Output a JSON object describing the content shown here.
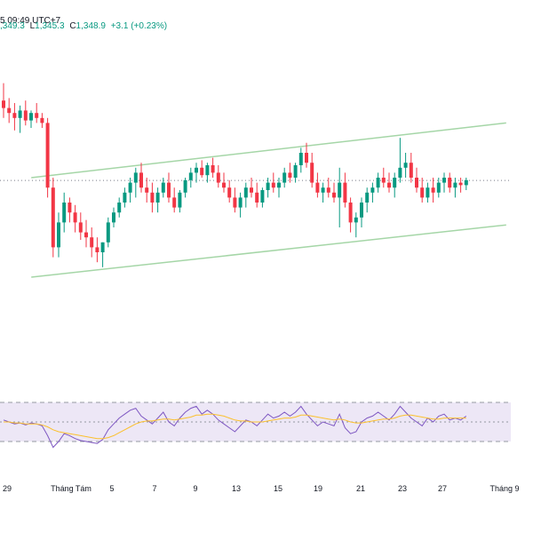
{
  "header": {
    "time": "5 09:49 UTC+7",
    "ohlc_fragment": ",349.3",
    "low_label": "L",
    "low_value": "1,345.3",
    "close_label": "C",
    "close_value": "1,348.9",
    "change": "+3.1 (+0.23%)"
  },
  "colors": {
    "up": "#089981",
    "down": "#f23645",
    "channel": "#a5d6a7",
    "rsi_line": "#7e57c2",
    "rsi_ma": "#fbc02d",
    "rsi_band": "#ede7f6",
    "rsi_oversold_fill": "#f8bbd0",
    "price_line": "#787b86"
  },
  "chart_data": [
    {
      "type": "candlestick",
      "ylim": [
        1300,
        1400
      ],
      "x_tick_labels": [
        "29",
        "Tháng Tám",
        "5",
        "7",
        "9",
        "13",
        "15",
        "19",
        "21",
        "23",
        "27",
        "Tháng 9"
      ],
      "last_price": 1348.9,
      "candles": [
        [
          1381,
          1388,
          1374,
          1378
        ],
        [
          1378,
          1382,
          1372,
          1376
        ],
        [
          1376,
          1380,
          1369,
          1374
        ],
        [
          1374,
          1379,
          1368,
          1377
        ],
        [
          1377,
          1381,
          1371,
          1373
        ],
        [
          1373,
          1377,
          1370,
          1376
        ],
        [
          1376,
          1380,
          1372,
          1374
        ],
        [
          1374,
          1376,
          1370,
          1372
        ],
        [
          1372,
          1374,
          1342,
          1346
        ],
        [
          1346,
          1350,
          1318,
          1322
        ],
        [
          1322,
          1336,
          1318,
          1332
        ],
        [
          1332,
          1344,
          1328,
          1340
        ],
        [
          1340,
          1342,
          1332,
          1336
        ],
        [
          1336,
          1339,
          1328,
          1332
        ],
        [
          1332,
          1336,
          1325,
          1328
        ],
        [
          1328,
          1333,
          1322,
          1326
        ],
        [
          1326,
          1330,
          1318,
          1322
        ],
        [
          1322,
          1326,
          1316,
          1320
        ],
        [
          1320,
          1324,
          1314,
          1324
        ],
        [
          1324,
          1334,
          1322,
          1332
        ],
        [
          1332,
          1338,
          1330,
          1336
        ],
        [
          1336,
          1342,
          1334,
          1340
        ],
        [
          1340,
          1346,
          1338,
          1344
        ],
        [
          1344,
          1350,
          1340,
          1348
        ],
        [
          1348,
          1354,
          1342,
          1352
        ],
        [
          1352,
          1356,
          1344,
          1346
        ],
        [
          1346,
          1350,
          1340,
          1344
        ],
        [
          1344,
          1348,
          1336,
          1340
        ],
        [
          1340,
          1346,
          1336,
          1344
        ],
        [
          1344,
          1350,
          1342,
          1348
        ],
        [
          1348,
          1352,
          1340,
          1342
        ],
        [
          1342,
          1346,
          1336,
          1338
        ],
        [
          1338,
          1345,
          1336,
          1344
        ],
        [
          1344,
          1350,
          1342,
          1349
        ],
        [
          1349,
          1354,
          1346,
          1352
        ],
        [
          1352,
          1356,
          1348,
          1354
        ],
        [
          1354,
          1357,
          1350,
          1351
        ],
        [
          1351,
          1356,
          1348,
          1355
        ],
        [
          1355,
          1358,
          1350,
          1352
        ],
        [
          1352,
          1355,
          1346,
          1348
        ],
        [
          1348,
          1352,
          1344,
          1346
        ],
        [
          1346,
          1349,
          1340,
          1342
        ],
        [
          1342,
          1346,
          1336,
          1338
        ],
        [
          1338,
          1344,
          1334,
          1342
        ],
        [
          1342,
          1348,
          1338,
          1346
        ],
        [
          1346,
          1350,
          1342,
          1344
        ],
        [
          1344,
          1348,
          1338,
          1340
        ],
        [
          1340,
          1346,
          1338,
          1345
        ],
        [
          1345,
          1350,
          1342,
          1348
        ],
        [
          1348,
          1352,
          1344,
          1346
        ],
        [
          1346,
          1350,
          1342,
          1348
        ],
        [
          1348,
          1354,
          1346,
          1352
        ],
        [
          1352,
          1356,
          1348,
          1350
        ],
        [
          1350,
          1356,
          1348,
          1355
        ],
        [
          1355,
          1362,
          1352,
          1360
        ],
        [
          1360,
          1364,
          1354,
          1356
        ],
        [
          1356,
          1360,
          1346,
          1348
        ],
        [
          1348,
          1352,
          1342,
          1344
        ],
        [
          1344,
          1348,
          1340,
          1346
        ],
        [
          1346,
          1350,
          1342,
          1344
        ],
        [
          1344,
          1348,
          1340,
          1342
        ],
        [
          1342,
          1354,
          1330,
          1348
        ],
        [
          1348,
          1352,
          1338,
          1340
        ],
        [
          1340,
          1342,
          1328,
          1332
        ],
        [
          1332,
          1336,
          1326,
          1334
        ],
        [
          1334,
          1342,
          1330,
          1340
        ],
        [
          1340,
          1346,
          1336,
          1344
        ],
        [
          1344,
          1348,
          1340,
          1346
        ],
        [
          1346,
          1352,
          1344,
          1350
        ],
        [
          1350,
          1354,
          1346,
          1348
        ],
        [
          1348,
          1352,
          1344,
          1346
        ],
        [
          1346,
          1352,
          1342,
          1350
        ],
        [
          1350,
          1366,
          1348,
          1354
        ],
        [
          1354,
          1360,
          1350,
          1356
        ],
        [
          1356,
          1360,
          1348,
          1350
        ],
        [
          1350,
          1354,
          1344,
          1346
        ],
        [
          1346,
          1350,
          1340,
          1342
        ],
        [
          1342,
          1348,
          1340,
          1346
        ],
        [
          1346,
          1350,
          1340,
          1344
        ],
        [
          1344,
          1350,
          1342,
          1348
        ],
        [
          1348,
          1352,
          1344,
          1350
        ],
        [
          1350,
          1352,
          1344,
          1346
        ],
        [
          1346,
          1350,
          1342,
          1348
        ],
        [
          1348,
          1350,
          1344,
          1347
        ],
        [
          1347,
          1350,
          1345,
          1349
        ]
      ],
      "channel_upper": [
        [
          1,
          1350
        ],
        [
          84,
          1372
        ]
      ],
      "channel_lower": [
        [
          1,
          1310
        ],
        [
          84,
          1331
        ]
      ]
    },
    {
      "type": "line",
      "title": "",
      "ylim": [
        0,
        100
      ],
      "bands": [
        30,
        50,
        70
      ],
      "series": [
        {
          "color": "#7e57c2",
          "values": [
            52,
            50,
            48,
            49,
            47,
            49,
            48,
            46,
            36,
            24,
            30,
            38,
            36,
            33,
            31,
            30,
            29,
            28,
            32,
            42,
            48,
            54,
            58,
            62,
            64,
            56,
            52,
            48,
            54,
            60,
            50,
            46,
            54,
            60,
            64,
            66,
            58,
            62,
            58,
            52,
            48,
            44,
            40,
            46,
            52,
            50,
            46,
            52,
            58,
            54,
            56,
            60,
            56,
            60,
            66,
            58,
            52,
            46,
            50,
            48,
            46,
            58,
            44,
            38,
            40,
            50,
            54,
            56,
            60,
            56,
            52,
            58,
            66,
            60,
            54,
            50,
            46,
            54,
            50,
            56,
            58,
            52,
            54,
            52,
            56
          ]
        },
        {
          "color": "#fbc02d",
          "values": [
            50,
            50,
            49,
            49,
            48,
            48,
            48,
            47,
            45,
            42,
            40,
            39,
            38,
            37,
            36,
            35,
            34,
            33,
            33,
            34,
            36,
            39,
            42,
            45,
            48,
            50,
            51,
            51,
            52,
            53,
            53,
            52,
            53,
            54,
            55,
            57,
            57,
            58,
            58,
            57,
            56,
            54,
            52,
            51,
            51,
            50,
            50,
            50,
            51,
            52,
            53,
            54,
            54,
            55,
            57,
            57,
            56,
            55,
            54,
            53,
            52,
            53,
            52,
            50,
            49,
            49,
            50,
            51,
            52,
            53,
            53,
            54,
            56,
            57,
            57,
            56,
            55,
            54,
            53,
            53,
            54,
            54,
            54,
            54,
            54
          ]
        }
      ]
    }
  ]
}
